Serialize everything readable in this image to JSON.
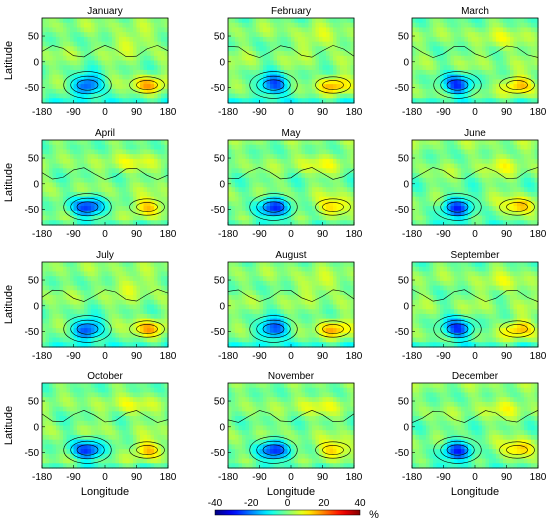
{
  "chart_data": {
    "type": "heatmap",
    "panels": [
      {
        "title": "January"
      },
      {
        "title": "February"
      },
      {
        "title": "March"
      },
      {
        "title": "April"
      },
      {
        "title": "May"
      },
      {
        "title": "June"
      },
      {
        "title": "July"
      },
      {
        "title": "August"
      },
      {
        "title": "September"
      },
      {
        "title": "October"
      },
      {
        "title": "November"
      },
      {
        "title": "December"
      }
    ],
    "xlabel": "Longitude",
    "ylabel": "Latitude",
    "xlim": [
      -180,
      180
    ],
    "ylim": [
      -80,
      85
    ],
    "xticks": [
      -180,
      -90,
      0,
      90,
      180
    ],
    "xtick_labels": [
      "-180",
      "-90",
      "0",
      "90",
      "180"
    ],
    "yticks": [
      50,
      0,
      -50
    ],
    "ytick_labels": [
      "50",
      "0",
      "-50"
    ],
    "colorbar": {
      "range": [
        -40,
        40
      ],
      "ticks": [
        -40,
        -20,
        0,
        20,
        40
      ],
      "tick_labels": [
        "-40",
        "-20",
        "0",
        "20",
        "40"
      ],
      "unit": "%",
      "colormap": "jet",
      "colors": [
        "#00008f",
        "#0000ff",
        "#00ffff",
        "#ffff00",
        "#ff0000",
        "#800000"
      ]
    },
    "features": {
      "negative_center": {
        "lon": -50,
        "lat": -45,
        "peak": -25
      },
      "positive_center": {
        "lon": 120,
        "lat": -45,
        "peak": 15
      },
      "background": 0
    }
  }
}
